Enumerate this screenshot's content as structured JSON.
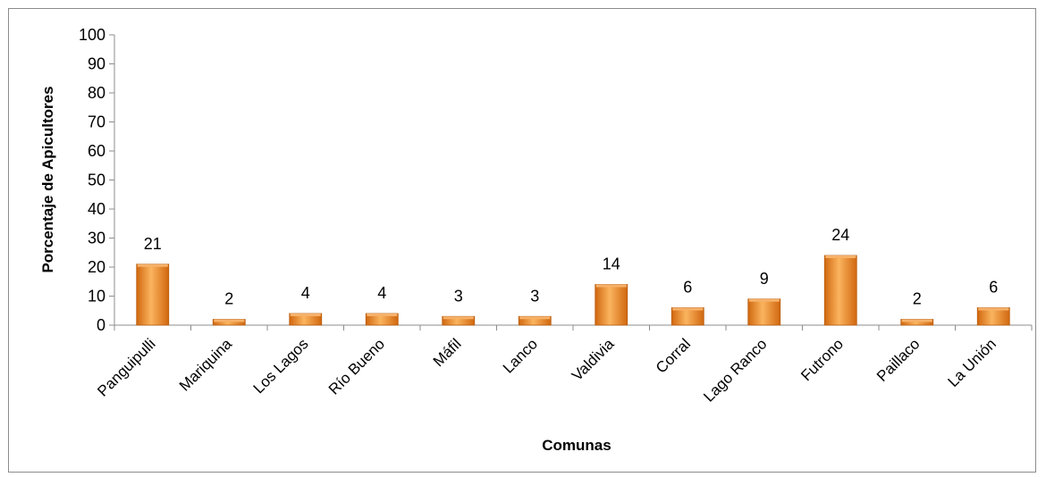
{
  "chart_data": {
    "type": "bar",
    "title": "",
    "xlabel": "Comunas",
    "ylabel": "Porcentaje de Apicultores",
    "ylim": [
      0,
      100
    ],
    "yticks": [
      0,
      10,
      20,
      30,
      40,
      50,
      60,
      70,
      80,
      90,
      100
    ],
    "categories": [
      "Panguipulli",
      "Mariquina",
      "Los Lagos",
      "Río Bueno",
      "Máfil",
      "Lanco",
      "Valdivia",
      "Corral",
      "Lago Ranco",
      "Futrono",
      "Paillaco",
      "La Unión"
    ],
    "values": [
      21,
      2,
      4,
      4,
      3,
      3,
      14,
      6,
      9,
      24,
      2,
      6
    ],
    "data_labels": [
      "21",
      "2",
      "4",
      "4",
      "3",
      "3",
      "14",
      "6",
      "9",
      "24",
      "2",
      "6"
    ],
    "bar_color_light": "#FBB45E",
    "bar_color_dark": "#D0670F",
    "grid": false,
    "legend": "none"
  }
}
